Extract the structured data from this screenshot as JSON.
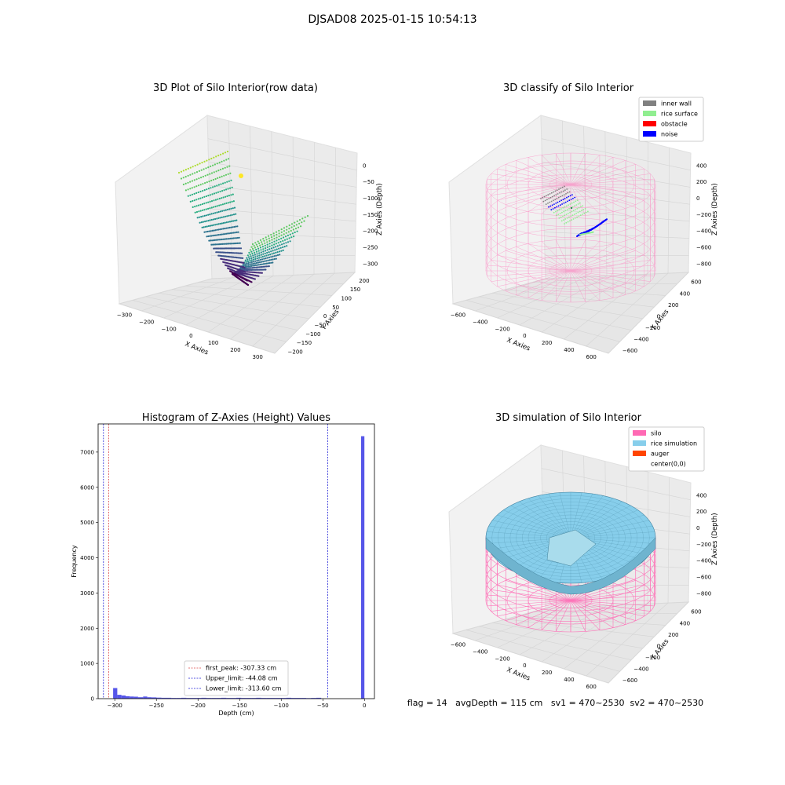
{
  "suptitle": "DJSAD08 2025-01-15 10:54:13",
  "status_line": "flag = 14   avgDepth = 115 cm   sv1 = 470~2530  sv2 = 470~2530",
  "colors": {
    "inner_wall": "#808080",
    "rice_surface": "#90ee90",
    "obstacle": "#ff0000",
    "noise": "#0000ff",
    "silo": "#ff69b4",
    "rice_simulation": "#87ceeb",
    "auger": "#ff4500",
    "hist_bar": "#4d4de8"
  },
  "chart_data": [
    {
      "type": "scatter",
      "title": "3D Plot of Silo Interior(row data)",
      "xlabel": "X Axies",
      "ylabel": "Y Axies",
      "zlabel": "Z Axies (Depth)",
      "x_ticks": [
        "−300",
        "−200",
        "−100",
        "0",
        "100",
        "200",
        "300"
      ],
      "y_ticks": [
        "−200",
        "−150",
        "−100",
        "−50",
        "0",
        "50",
        "100",
        "150",
        "200"
      ],
      "z_ticks": [
        "0",
        "−50",
        "−100",
        "−150",
        "−200",
        "−250",
        "−300"
      ],
      "xlim": [
        -300,
        300
      ],
      "ylim": [
        -200,
        200
      ],
      "zlim": [
        -320,
        10
      ],
      "colormap": "viridis"
    },
    {
      "type": "scatter",
      "title": "3D classify of Silo Interior",
      "xlabel": "X Axies",
      "ylabel": "Y Axies",
      "zlabel": "Z Axies (Depth)",
      "x_ticks": [
        "−600",
        "−400",
        "−200",
        "0",
        "200",
        "400",
        "600"
      ],
      "y_ticks": [
        "−600",
        "−400",
        "−200",
        "0",
        "200",
        "400",
        "600"
      ],
      "z_ticks": [
        "400",
        "200",
        "0",
        "−200",
        "−400",
        "−600",
        "−800"
      ],
      "legend": [
        "inner wall",
        "rice surface",
        "obstacle",
        "noise"
      ],
      "legend_position": "upper right"
    },
    {
      "type": "bar",
      "title": "Histogram of Z-Axies (Height) Values",
      "xlabel": "Depth (cm)",
      "ylabel": "Frequency",
      "xlim": [
        -320,
        12
      ],
      "ylim": [
        0,
        7800
      ],
      "x_ticks": [
        -300,
        -250,
        -200,
        -150,
        -100,
        -50,
        0
      ],
      "x_tick_labels": [
        "−300",
        "−250",
        "−200",
        "−150",
        "−100",
        "−50",
        "0"
      ],
      "y_ticks": [
        0,
        1000,
        2000,
        3000,
        4000,
        5000,
        6000,
        7000
      ],
      "bins": [
        {
          "x0": -302,
          "x1": -297,
          "count": 300
        },
        {
          "x0": -297,
          "x1": -292,
          "count": 110
        },
        {
          "x0": -292,
          "x1": -287,
          "count": 90
        },
        {
          "x0": -287,
          "x1": -282,
          "count": 70
        },
        {
          "x0": -282,
          "x1": -277,
          "count": 60
        },
        {
          "x0": -277,
          "x1": -272,
          "count": 55
        },
        {
          "x0": -272,
          "x1": -266,
          "count": 40
        },
        {
          "x0": -266,
          "x1": -261,
          "count": 60
        },
        {
          "x0": -261,
          "x1": -256,
          "count": 40
        },
        {
          "x0": -256,
          "x1": -250,
          "count": 35
        },
        {
          "x0": -250,
          "x1": -244,
          "count": 30
        },
        {
          "x0": -244,
          "x1": -238,
          "count": 25
        },
        {
          "x0": -238,
          "x1": -232,
          "count": 25
        },
        {
          "x0": -232,
          "x1": -226,
          "count": 20
        },
        {
          "x0": -226,
          "x1": -220,
          "count": 20
        },
        {
          "x0": -220,
          "x1": -214,
          "count": 25
        },
        {
          "x0": -214,
          "x1": -208,
          "count": 20
        },
        {
          "x0": -208,
          "x1": -202,
          "count": 20
        },
        {
          "x0": -202,
          "x1": -196,
          "count": 20
        },
        {
          "x0": -196,
          "x1": -190,
          "count": 25
        },
        {
          "x0": -190,
          "x1": -184,
          "count": 20
        },
        {
          "x0": -184,
          "x1": -178,
          "count": 20
        },
        {
          "x0": -178,
          "x1": -172,
          "count": 20
        },
        {
          "x0": -172,
          "x1": -166,
          "count": 25
        },
        {
          "x0": -166,
          "x1": -160,
          "count": 20
        },
        {
          "x0": -160,
          "x1": -154,
          "count": 20
        },
        {
          "x0": -154,
          "x1": -148,
          "count": 25
        },
        {
          "x0": -148,
          "x1": -142,
          "count": 20
        },
        {
          "x0": -142,
          "x1": -136,
          "count": 20
        },
        {
          "x0": -136,
          "x1": -130,
          "count": 20
        },
        {
          "x0": -130,
          "x1": -124,
          "count": 25
        },
        {
          "x0": -124,
          "x1": -118,
          "count": 20
        },
        {
          "x0": -118,
          "x1": -112,
          "count": 20
        },
        {
          "x0": -112,
          "x1": -106,
          "count": 20
        },
        {
          "x0": -106,
          "x1": -100,
          "count": 20
        },
        {
          "x0": -100,
          "x1": -94,
          "count": 20
        },
        {
          "x0": -94,
          "x1": -88,
          "count": 25
        },
        {
          "x0": -88,
          "x1": -82,
          "count": 20
        },
        {
          "x0": -82,
          "x1": -76,
          "count": 20
        },
        {
          "x0": -76,
          "x1": -70,
          "count": 20
        },
        {
          "x0": -70,
          "x1": -64,
          "count": 15
        },
        {
          "x0": -64,
          "x1": -58,
          "count": 20
        },
        {
          "x0": -58,
          "x1": -52,
          "count": 25
        },
        {
          "x0": -4,
          "x1": 0,
          "count": 7450
        }
      ],
      "reference_lines": [
        {
          "label": "first_peak: -307.33 cm",
          "x": -307.33,
          "color": "#dd4b4b"
        },
        {
          "label": "Upper_limit: -44.08 cm",
          "x": -44.08,
          "color": "#1f1fd6"
        },
        {
          "label": "Lower_limit: -313.60 cm",
          "x": -313.6,
          "color": "#1f1fd6"
        }
      ],
      "legend_position": "lower center"
    },
    {
      "type": "scatter",
      "title": "3D simulation of Silo Interior",
      "xlabel": "X Axies",
      "ylabel": "Y Axies",
      "zlabel": "Z Axies (Depth)",
      "x_ticks": [
        "−600",
        "−400",
        "−200",
        "0",
        "200",
        "400",
        "600"
      ],
      "y_ticks": [
        "−600",
        "−400",
        "−200",
        "0",
        "200",
        "400",
        "600"
      ],
      "z_ticks": [
        "400",
        "200",
        "0",
        "−200",
        "−400",
        "−600",
        "−800"
      ],
      "legend": [
        "silo",
        "rice simulation",
        "auger",
        "center(0,0)"
      ],
      "legend_position": "upper right"
    }
  ]
}
